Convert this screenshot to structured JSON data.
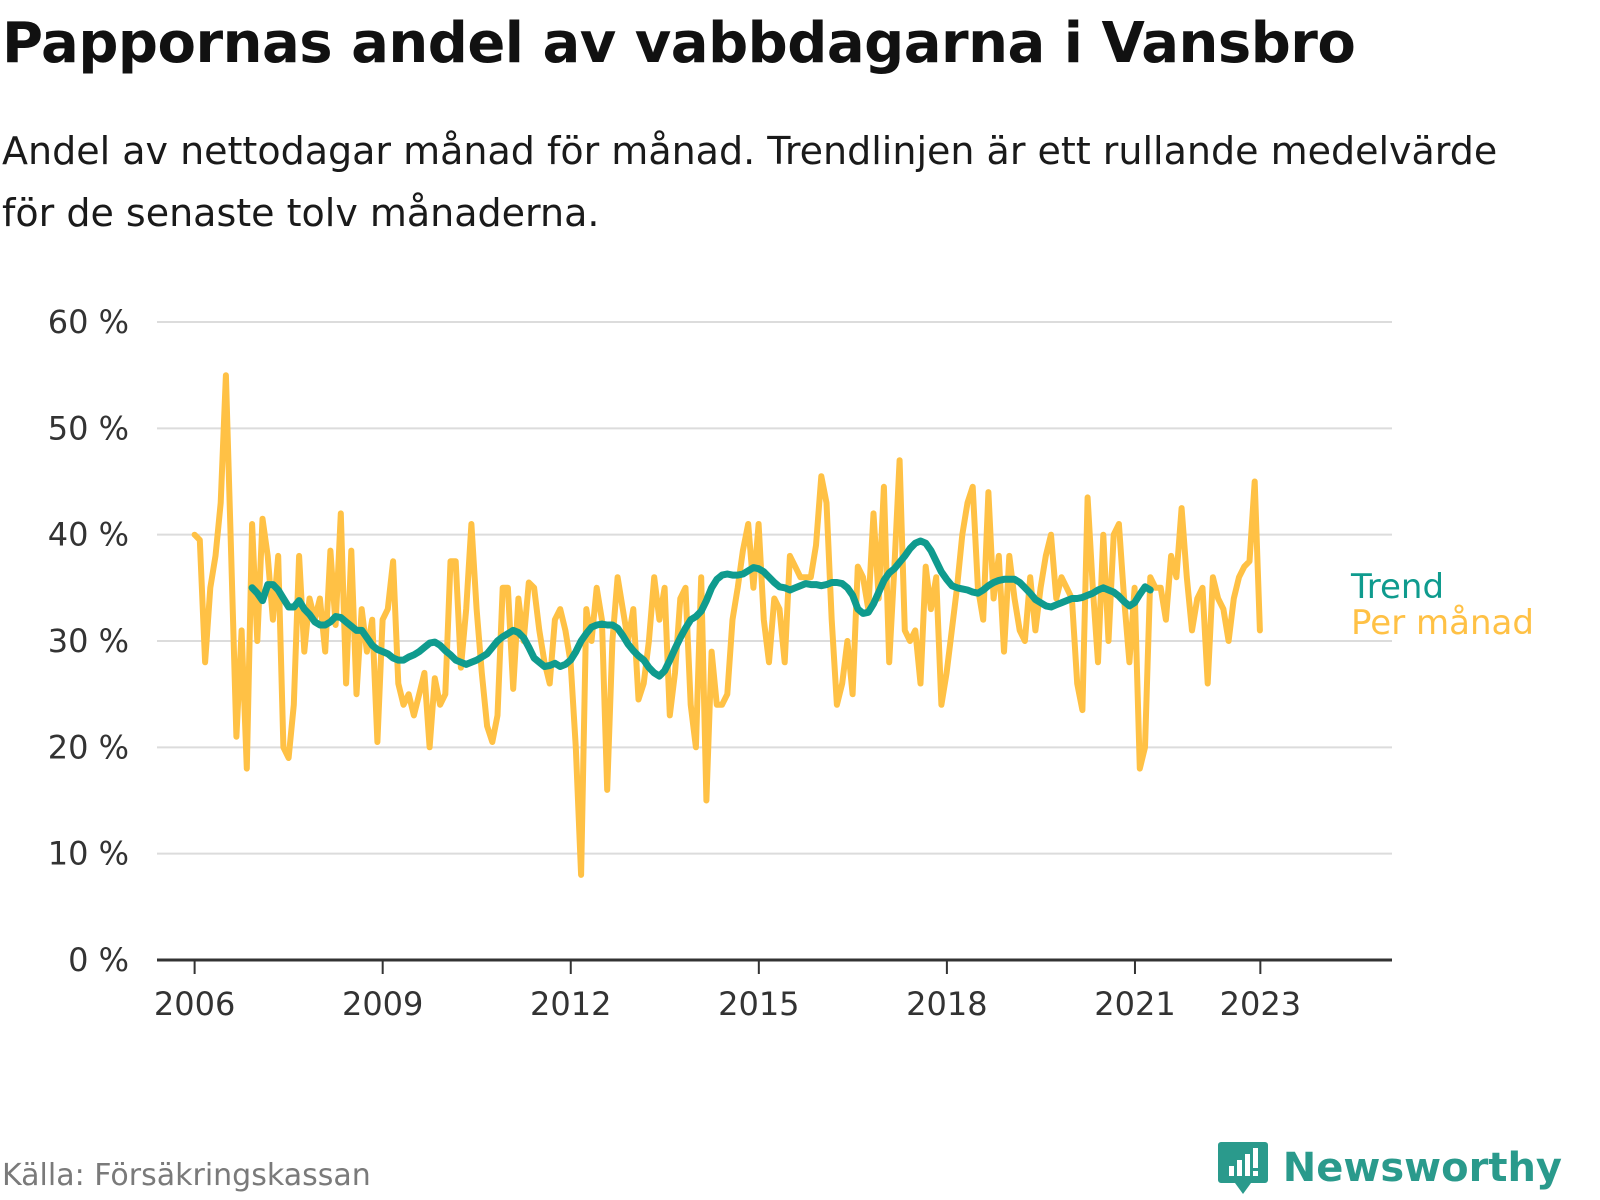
{
  "header": {
    "title": "Pappornas andel av vabbdagarna i Vansbro",
    "subtitle": "Andel av nettodagar månad för månad. Trendlinjen är ett rullande medelvärde för de senaste tolv månaderna."
  },
  "footer": {
    "source": "Källa: Försäkringskassan",
    "brand": "Newsworthy",
    "brand_icon": "newsworthy-logo-icon"
  },
  "colors": {
    "monthly": "#ffc145",
    "trend": "#0f9b8e",
    "grid": "#dcdcdc",
    "axis": "#333333",
    "brand": "#2a9a8c"
  },
  "chart_data": {
    "type": "line",
    "x_unit": "year (decimal)",
    "y_unit": "%",
    "ylim": [
      0,
      60
    ],
    "xlim": [
      2005.4,
      2025.1
    ],
    "y_ticks": [
      0,
      10,
      20,
      30,
      40,
      50,
      60
    ],
    "y_tick_labels": [
      "0 %",
      "10 %",
      "20 %",
      "30 %",
      "40 %",
      "50 %",
      "60 %"
    ],
    "x_ticks": [
      2006,
      2009,
      2012,
      2015,
      2018,
      2021,
      2023
    ],
    "x_tick_labels": [
      "2006",
      "2009",
      "2012",
      "2015",
      "2018",
      "2021",
      "2023"
    ],
    "grid": "horizontal",
    "legend": "direct labels at right end of lines",
    "series": [
      {
        "name": "Per månad",
        "color": "#ffc145",
        "start": 2006.0,
        "step": 0.0833,
        "values": [
          40,
          39.5,
          28,
          35,
          38,
          43,
          55,
          38,
          21,
          31,
          18,
          41,
          30,
          41.5,
          38,
          32,
          38,
          20,
          19,
          24,
          38,
          29,
          34,
          32,
          34,
          29,
          38.5,
          31.5,
          42,
          26,
          38.5,
          25,
          33,
          29,
          32,
          20.5,
          32,
          33,
          37.5,
          26,
          24,
          25,
          23,
          25,
          27,
          20,
          26.5,
          24,
          25,
          37.5,
          37.5,
          27.5,
          33,
          41,
          33,
          27,
          22,
          20.5,
          23,
          35,
          35,
          25.5,
          34,
          30,
          35.5,
          35,
          31,
          28,
          26,
          32,
          33,
          31,
          28,
          20,
          8,
          33,
          30,
          35,
          32,
          16,
          30,
          36,
          33,
          30,
          33,
          24.5,
          26,
          30,
          36,
          32,
          35,
          23,
          27,
          34,
          35,
          24,
          20,
          36,
          15,
          29,
          24,
          24,
          25,
          32,
          35,
          38.5,
          41,
          35,
          41,
          32,
          28,
          34,
          33,
          28,
          38,
          37,
          36,
          36,
          36,
          39,
          45.5,
          43,
          32,
          24,
          26,
          30,
          25,
          37,
          36,
          33,
          42,
          34,
          44.5,
          28,
          37,
          47,
          31,
          30,
          31,
          26,
          37,
          33,
          36,
          24,
          27,
          31,
          35,
          40,
          43,
          44.5,
          35,
          32,
          44,
          34,
          38,
          29,
          38,
          34,
          31,
          30,
          36,
          31,
          35,
          38,
          40,
          34,
          36,
          35,
          34,
          26,
          23.5,
          43.5,
          35,
          28,
          40,
          30,
          40,
          41,
          34,
          28,
          35,
          18,
          20,
          36,
          35,
          35,
          32,
          38,
          36,
          42.5,
          36,
          31,
          34,
          35,
          26,
          36,
          34,
          33,
          30,
          34,
          36,
          37,
          37.5,
          45,
          31
        ]
      },
      {
        "name": "Trend",
        "color": "#0f9b8e",
        "start": 2006.917,
        "step": 0.0833,
        "values": [
          35,
          34.5,
          33.8,
          35.3,
          35.3,
          34.8,
          34,
          33.2,
          33.2,
          33.8,
          33,
          32.5,
          31.8,
          31.5,
          31.5,
          31.8,
          32.3,
          32.2,
          31.8,
          31.4,
          31,
          31,
          30.3,
          29.6,
          29.2,
          29,
          28.8,
          28.4,
          28.2,
          28.2,
          28.5,
          28.7,
          29,
          29.4,
          29.8,
          29.9,
          29.6,
          29.1,
          28.7,
          28.2,
          28,
          27.8,
          28,
          28.2,
          28.5,
          28.8,
          29.4,
          30,
          30.4,
          30.7,
          31,
          30.8,
          30.3,
          29.4,
          28.4,
          28,
          27.6,
          27.7,
          27.9,
          27.6,
          27.8,
          28.2,
          29,
          30,
          30.7,
          31.3,
          31.5,
          31.6,
          31.5,
          31.5,
          31.2,
          30.5,
          29.7,
          29.1,
          28.6,
          28.2,
          27.5,
          27,
          26.7,
          27.2,
          28.2,
          29.3,
          30.3,
          31.2,
          32,
          32.3,
          32.8,
          33.8,
          35,
          35.8,
          36.2,
          36.3,
          36.2,
          36.2,
          36.3,
          36.6,
          36.9,
          36.8,
          36.5,
          36,
          35.5,
          35.1,
          35,
          34.8,
          35,
          35.2,
          35.4,
          35.3,
          35.3,
          35.2,
          35.3,
          35.5,
          35.5,
          35.4,
          35,
          34.3,
          33,
          32.6,
          32.7,
          33.5,
          34.6,
          35.7,
          36.4,
          36.8,
          37.4,
          38,
          38.7,
          39.2,
          39.4,
          39.2,
          38.5,
          37.5,
          36.5,
          35.8,
          35.2,
          35,
          34.9,
          34.8,
          34.6,
          34.5,
          34.8,
          35.2,
          35.5,
          35.7,
          35.8,
          35.8,
          35.8,
          35.5,
          35,
          34.5,
          33.9,
          33.6,
          33.3,
          33.2,
          33.4,
          33.6,
          33.8,
          34,
          34,
          34.1,
          34.3,
          34.5,
          34.8,
          35,
          34.8,
          34.6,
          34.2,
          33.7,
          33.3,
          33.6,
          34.4,
          35.1,
          34.8
        ]
      }
    ]
  }
}
